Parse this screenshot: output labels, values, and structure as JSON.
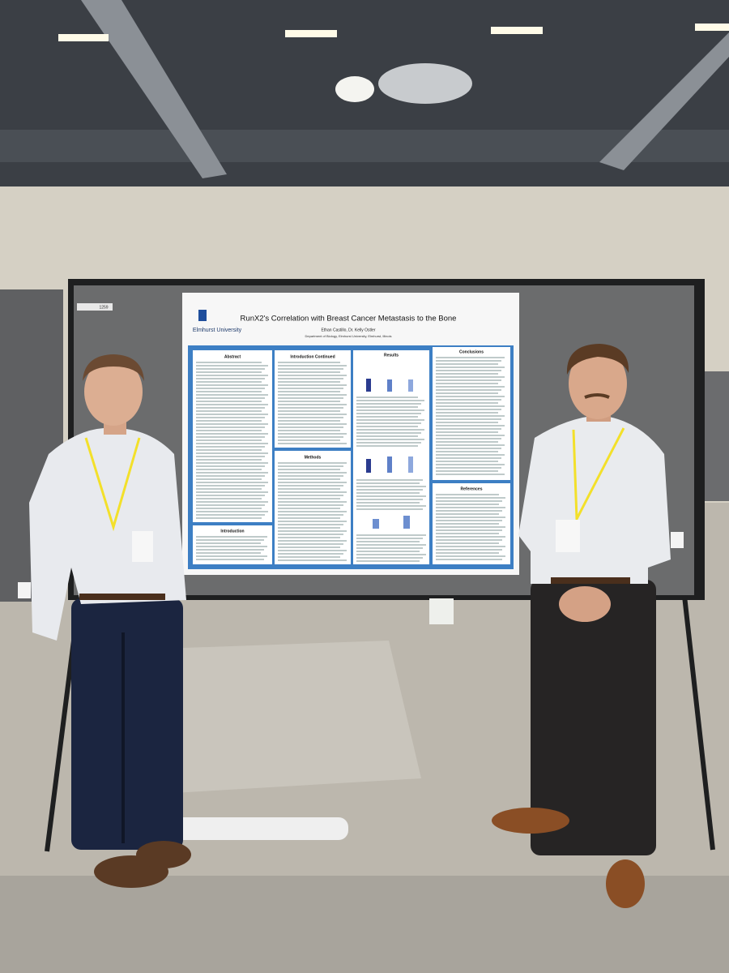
{
  "board_tag": "1259",
  "poster": {
    "logo": "Elmhurst University",
    "title": "RunX2's Correlation with Breast Cancer Metastasis to the Bone",
    "authors": "Ethan Castillo, Dr. Kelly Ostler",
    "department": "Department of Biology, Elmhurst University, Elmhurst, Illinois",
    "sections": [
      "Abstract",
      "Introduction",
      "Introduction Continued",
      "Methods",
      "Results",
      "Conclusions",
      "References"
    ]
  }
}
